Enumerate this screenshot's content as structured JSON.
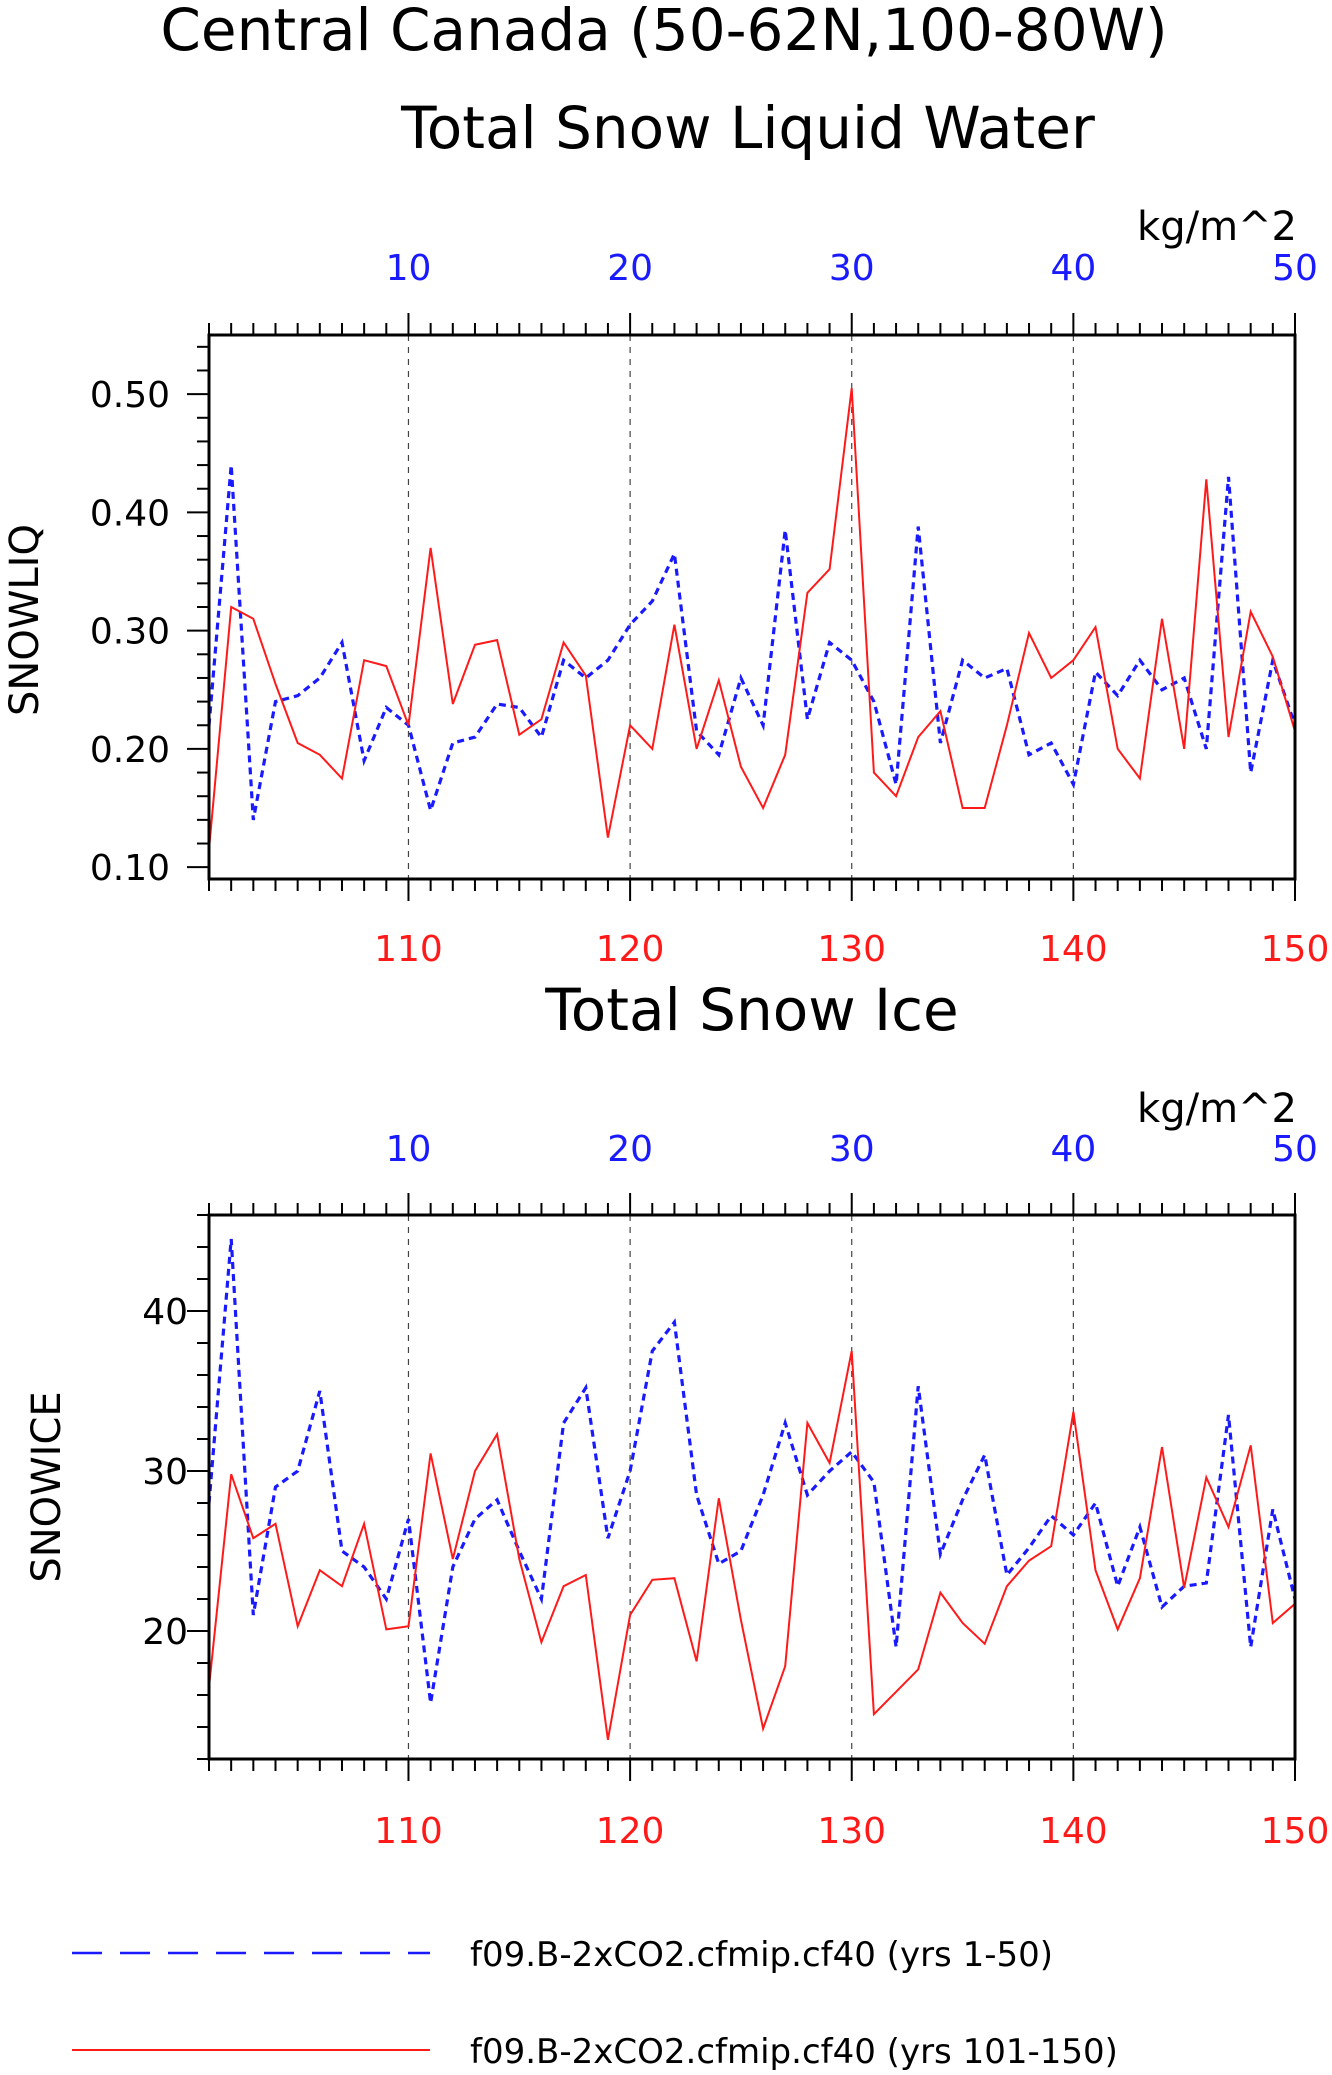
{
  "figure": {
    "title": "Central Canada (50-62N,100-80W)",
    "units_label": "kg/m^2"
  },
  "colors": {
    "blue": "#1a1aff",
    "red": "#ff1a1a",
    "axis": "#000000"
  },
  "legend": [
    {
      "label": "f09.B-2xCO2.cfmip.cf40 (yrs 1-50)",
      "color": "#1a1aff",
      "style": "dashed"
    },
    {
      "label": "f09.B-2xCO2.cfmip.cf40 (yrs 101-150)",
      "color": "#ff1a1a",
      "style": "solid"
    }
  ],
  "chart_data": [
    {
      "type": "line",
      "title": "Total Snow Liquid Water",
      "ylabel": "SNOWLIQ",
      "units": "kg/m^2",
      "ylim": [
        0.09,
        0.55
      ],
      "yticks": [
        0.1,
        0.2,
        0.3,
        0.4,
        0.5
      ],
      "ytick_labels": [
        "0.10",
        "0.20",
        "0.30",
        "0.40",
        "0.50"
      ],
      "top_axis": {
        "range": [
          1,
          50
        ],
        "ticks": [
          10,
          20,
          30,
          40,
          50
        ],
        "labels": [
          "10",
          "20",
          "30",
          "40",
          "50"
        ]
      },
      "bottom_axis": {
        "range": [
          101,
          150
        ],
        "ticks": [
          110,
          120,
          130,
          140,
          150
        ],
        "labels": [
          "110",
          "120",
          "130",
          "140",
          "150"
        ]
      },
      "series": [
        {
          "name": "f09.B-2xCO2.cfmip.cf40 (yrs 1-50)",
          "axis": "top",
          "values": [
            0.22,
            0.44,
            0.14,
            0.24,
            0.245,
            0.26,
            0.29,
            0.19,
            0.235,
            0.22,
            0.148,
            0.205,
            0.21,
            0.238,
            0.235,
            0.21,
            0.275,
            0.26,
            0.275,
            0.305,
            0.325,
            0.365,
            0.215,
            0.195,
            0.26,
            0.22,
            0.385,
            0.225,
            0.29,
            0.275,
            0.24,
            0.17,
            0.388,
            0.205,
            0.275,
            0.26,
            0.268,
            0.195,
            0.205,
            0.17,
            0.265,
            0.245,
            0.275,
            0.25,
            0.26,
            0.2,
            0.43,
            0.18,
            0.275,
            0.22
          ]
        },
        {
          "name": "f09.B-2xCO2.cfmip.cf40 (yrs 101-150)",
          "axis": "bottom",
          "values": [
            0.115,
            0.32,
            0.31,
            0.255,
            0.205,
            0.195,
            0.175,
            0.275,
            0.27,
            0.22,
            0.37,
            0.238,
            0.288,
            0.292,
            0.212,
            0.225,
            0.29,
            0.262,
            0.125,
            0.22,
            0.2,
            0.305,
            0.2,
            0.258,
            0.185,
            0.15,
            0.195,
            0.332,
            0.352,
            0.505,
            0.18,
            0.16,
            0.21,
            0.232,
            0.15,
            0.15,
            0.22,
            0.298,
            0.26,
            0.275,
            0.303,
            0.2,
            0.175,
            0.31,
            0.2,
            0.428,
            0.21,
            0.316,
            0.278,
            0.215
          ]
        }
      ]
    },
    {
      "type": "line",
      "title": "Total Snow Ice",
      "ylabel": "SNOWICE",
      "units": "kg/m^2",
      "ylim": [
        12,
        46
      ],
      "yticks": [
        20,
        30,
        40
      ],
      "ytick_labels": [
        "20",
        "30",
        "40"
      ],
      "top_axis": {
        "range": [
          1,
          50
        ],
        "ticks": [
          10,
          20,
          30,
          40,
          50
        ],
        "labels": [
          "10",
          "20",
          "30",
          "40",
          "50"
        ]
      },
      "bottom_axis": {
        "range": [
          101,
          150
        ],
        "ticks": [
          110,
          120,
          130,
          140,
          150
        ],
        "labels": [
          "110",
          "120",
          "130",
          "140",
          "150"
        ]
      },
      "series": [
        {
          "name": "f09.B-2xCO2.cfmip.cf40 (yrs 1-50)",
          "axis": "top",
          "values": [
            28,
            44.5,
            21,
            29,
            30,
            35,
            25,
            24,
            22,
            27,
            15.5,
            24,
            27,
            28.2,
            25,
            22,
            33,
            35.2,
            25.8,
            30,
            37.5,
            39.3,
            28.5,
            24.2,
            25,
            28.5,
            33,
            28.5,
            30,
            31.2,
            29.3,
            19,
            35.3,
            24.8,
            28.2,
            31,
            23.5,
            25.2,
            27.2,
            26,
            28,
            22.8,
            26.5,
            21.5,
            22.8,
            23,
            33.5,
            19,
            27.6,
            22
          ]
        },
        {
          "name": "f09.B-2xCO2.cfmip.cf40 (yrs 101-150)",
          "axis": "bottom",
          "values": [
            16.5,
            29.8,
            25.8,
            26.7,
            20.3,
            23.8,
            22.8,
            26.7,
            20.1,
            20.3,
            31.1,
            24.5,
            30,
            32.3,
            24.5,
            19.3,
            22.8,
            23.5,
            13.2,
            21,
            23.2,
            23.3,
            18.1,
            28.3,
            20.7,
            13.9,
            17.8,
            33,
            30.5,
            37.5,
            14.8,
            16.2,
            17.6,
            22.4,
            20.5,
            19.2,
            22.8,
            24.4,
            25.3,
            33.7,
            23.8,
            20.1,
            23.3,
            31.5,
            22.7,
            29.6,
            26.5,
            31.6,
            20.5,
            21.7
          ]
        }
      ]
    }
  ]
}
